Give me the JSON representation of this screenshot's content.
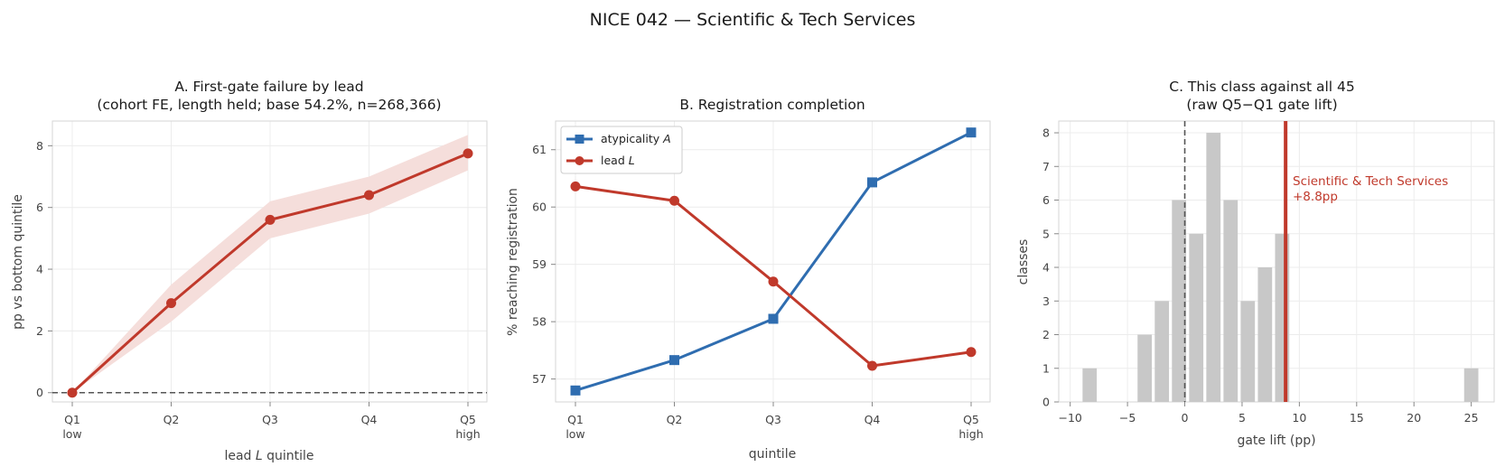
{
  "figure_title": "NICE 042 — Scientific & Tech Services",
  "colors": {
    "red": "#c0392b",
    "blue": "#2f6db0",
    "band": "#f5dedb",
    "bar": "#c8c8c8",
    "grid": "#ececec",
    "frame": "#d6d6d6"
  },
  "chart_data": [
    {
      "panel": "A",
      "type": "line",
      "title_lines": [
        "A. First-gate failure by lead",
        "(cohort FE, length held; base 54.2%, n=268,366)"
      ],
      "xlabel": "lead L quintile",
      "xlabel_main": "lead ",
      "xlabel_var": "L",
      "xlabel_tail": " quintile",
      "ylabel": "pp vs bottom quintile",
      "categories": [
        "Q1",
        "Q2",
        "Q3",
        "Q4",
        "Q5"
      ],
      "category_sublabels": [
        "low",
        "",
        "",
        "",
        "high"
      ],
      "series": [
        {
          "values": [
            0.0,
            2.9,
            5.6,
            6.4,
            7.75
          ],
          "ci_low": [
            0.0,
            2.3,
            5.0,
            5.8,
            7.2
          ],
          "ci_high": [
            0.0,
            3.5,
            6.2,
            7.0,
            8.35
          ]
        }
      ],
      "reference_line": 0,
      "ylim": [
        -0.3,
        8.8
      ],
      "yticks": [
        0,
        2,
        4,
        6,
        8
      ],
      "grid": true
    },
    {
      "panel": "B",
      "type": "line",
      "title_lines": [
        "B. Registration completion"
      ],
      "xlabel": "quintile",
      "ylabel": "% reaching registration",
      "categories": [
        "Q1",
        "Q2",
        "Q3",
        "Q4",
        "Q5"
      ],
      "category_sublabels": [
        "low",
        "",
        "",
        "",
        "high"
      ],
      "series": [
        {
          "name": "atypicality A",
          "name_main": "atypicality ",
          "name_var": "A",
          "marker": "square",
          "values": [
            56.8,
            57.33,
            58.05,
            60.43,
            61.3
          ]
        },
        {
          "name": "lead L",
          "name_main": "lead ",
          "name_var": "L",
          "marker": "circle",
          "values": [
            60.36,
            60.11,
            58.7,
            57.23,
            57.47
          ]
        }
      ],
      "legend_position": "upper-left",
      "ylim": [
        56.6,
        61.5
      ],
      "yticks": [
        57,
        58,
        59,
        60,
        61
      ],
      "grid": true
    },
    {
      "panel": "C",
      "type": "bar",
      "title_lines": [
        "C. This class against all 45",
        "(raw Q5−Q1 gate lift)"
      ],
      "xlabel": "gate lift (pp)",
      "ylabel": "classes",
      "bin_width": 1.4,
      "bins": [
        {
          "start": -9.0,
          "count": 1
        },
        {
          "start": -4.2,
          "count": 2
        },
        {
          "start": -2.7,
          "count": 3
        },
        {
          "start": -1.2,
          "count": 6
        },
        {
          "start": 0.3,
          "count": 5
        },
        {
          "start": 1.8,
          "count": 8
        },
        {
          "start": 3.3,
          "count": 6
        },
        {
          "start": 4.8,
          "count": 3
        },
        {
          "start": 6.3,
          "count": 4
        },
        {
          "start": 7.8,
          "count": 5
        },
        {
          "start": 24.3,
          "count": 1
        }
      ],
      "highlight_value": 8.8,
      "highlight_label_lines": [
        "Scientific & Tech Services",
        "+8.8pp"
      ],
      "reference_line": 0,
      "xlim": [
        -11.0,
        27.0
      ],
      "ylim": [
        0,
        8.35
      ],
      "xticks": [
        -10,
        -5,
        0,
        5,
        10,
        15,
        20,
        25
      ],
      "xtick_labels": [
        "−10",
        "−5",
        "0",
        "5",
        "10",
        "15",
        "20",
        "25"
      ],
      "yticks": [
        0,
        1,
        2,
        3,
        4,
        5,
        6,
        7,
        8
      ],
      "grid": true
    }
  ]
}
